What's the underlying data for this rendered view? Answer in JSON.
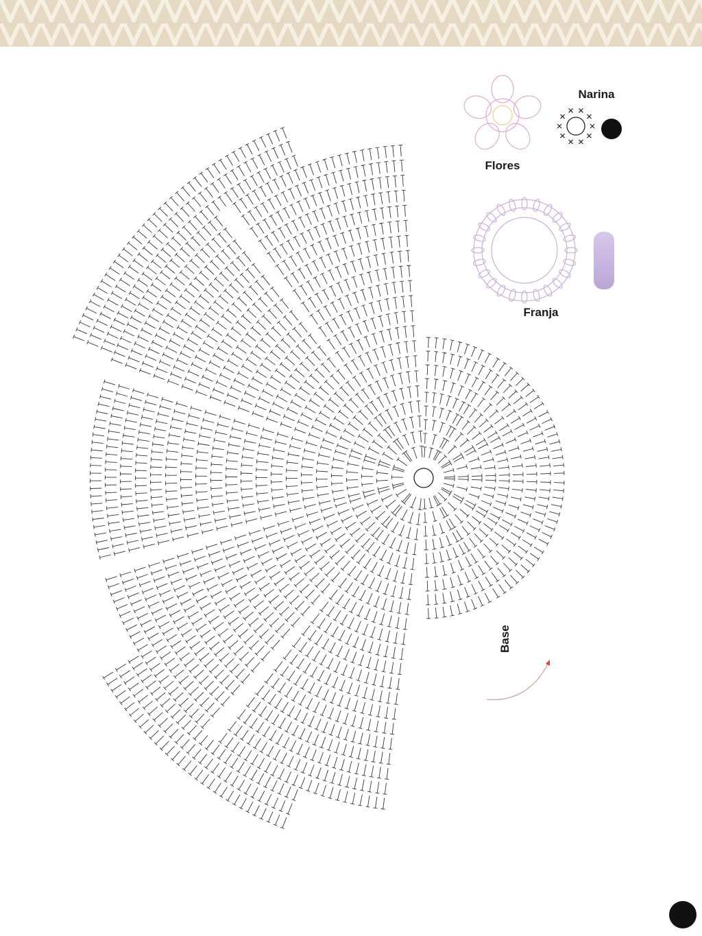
{
  "labels": {
    "narina": "Narina",
    "flores": "Flores",
    "franja": "Franja",
    "base": "Base"
  }
}
